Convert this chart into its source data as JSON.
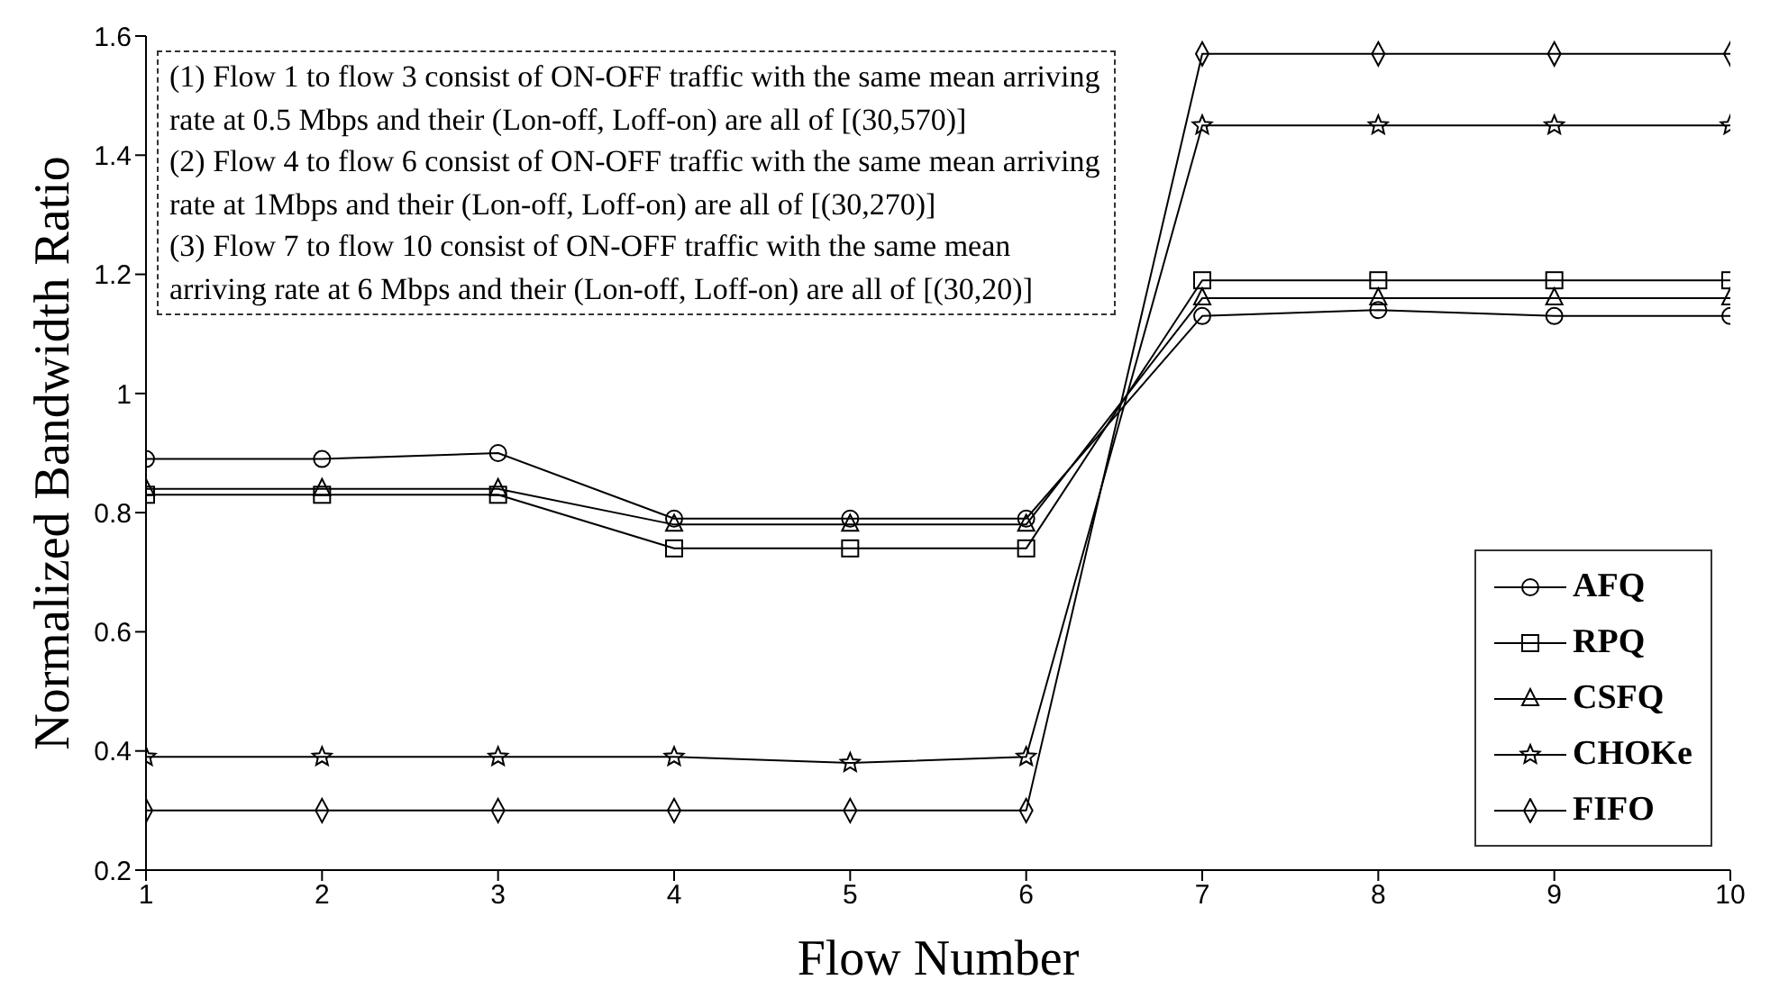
{
  "chart_data": {
    "type": "line",
    "xlabel": "Flow Number",
    "ylabel": "Normalized  Bandwidth  Ratio",
    "x": [
      1,
      2,
      3,
      4,
      5,
      6,
      7,
      8,
      9,
      10
    ],
    "series": [
      {
        "name": "AFQ",
        "color": "#000000",
        "marker": "circle",
        "values": [
          0.89,
          0.89,
          0.9,
          0.79,
          0.79,
          0.79,
          1.13,
          1.14,
          1.13,
          1.13
        ]
      },
      {
        "name": "RPQ",
        "color": "#000000",
        "marker": "square",
        "values": [
          0.83,
          0.83,
          0.83,
          0.74,
          0.74,
          0.74,
          1.19,
          1.19,
          1.19,
          1.19
        ]
      },
      {
        "name": "CSFQ",
        "color": "#000000",
        "marker": "triangle",
        "values": [
          0.84,
          0.84,
          0.84,
          0.78,
          0.78,
          0.78,
          1.16,
          1.16,
          1.16,
          1.16
        ]
      },
      {
        "name": "CHOKe",
        "color": "#000000",
        "marker": "star",
        "values": [
          0.39,
          0.39,
          0.39,
          0.39,
          0.38,
          0.39,
          1.45,
          1.45,
          1.45,
          1.45
        ]
      },
      {
        "name": "FIFO",
        "color": "#000000",
        "marker": "diamond",
        "values": [
          0.3,
          0.3,
          0.3,
          0.3,
          0.3,
          0.3,
          1.57,
          1.57,
          1.57,
          1.57
        ]
      }
    ],
    "xlim": [
      1,
      10
    ],
    "xticks": [
      1,
      2,
      3,
      4,
      5,
      6,
      7,
      8,
      9,
      10
    ],
    "ylim": [
      0.2,
      1.6
    ],
    "yticks": [
      0.2,
      0.4,
      0.6,
      0.8,
      1,
      1.2,
      1.4,
      1.6
    ],
    "grid": false,
    "legend": "bottom right",
    "line_style": "solid",
    "annotations": [
      "(1) Flow 1 to flow 3 consist of ON-OFF traffic with the same mean arriving rate at 0.5 Mbps and their (Lon-off, Loff-on) are all of [(30,570)]",
      "(2) Flow 4 to flow 6 consist of ON-OFF traffic with the same mean arriving rate at 1Mbps and their (Lon-off, Loff-on) are all of [(30,270)]",
      "(3) Flow 7 to flow 10 consist of ON-OFF traffic with the same mean arriving rate at 6 Mbps and their (Lon-off, Loff-on) are all of [(30,20)]"
    ]
  }
}
